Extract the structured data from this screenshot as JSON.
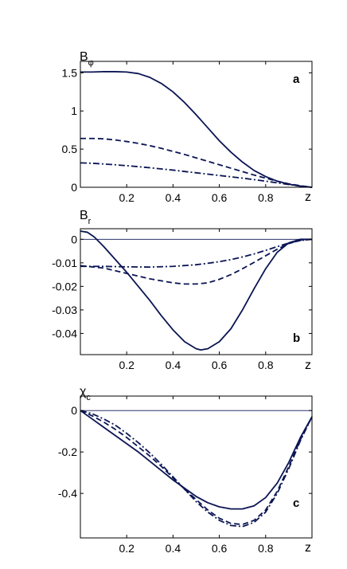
{
  "chart_data": [
    {
      "type": "line",
      "panel": "a",
      "ylabel_main": "B",
      "ylabel_sub": "φ",
      "xlabel": "z",
      "xlim": [
        0,
        1
      ],
      "ylim": [
        0,
        1.65
      ],
      "xticks": [
        "0.2",
        "0.4",
        "0.6",
        "0.8"
      ],
      "yticks": [
        {
          "v": 0,
          "label": "0"
        },
        {
          "v": 0.5,
          "label": "0.5"
        },
        {
          "v": 1,
          "label": "1"
        },
        {
          "v": 1.5,
          "label": "1.5"
        }
      ],
      "zero_line": false,
      "series": [
        {
          "style": "solid",
          "x": [
            0,
            0.05,
            0.1,
            0.15,
            0.2,
            0.25,
            0.3,
            0.35,
            0.4,
            0.45,
            0.5,
            0.55,
            0.6,
            0.65,
            0.7,
            0.75,
            0.8,
            0.85,
            0.9,
            0.95,
            1.0
          ],
          "y": [
            1.51,
            1.51,
            1.515,
            1.515,
            1.51,
            1.49,
            1.44,
            1.36,
            1.25,
            1.11,
            0.95,
            0.78,
            0.61,
            0.46,
            0.33,
            0.22,
            0.14,
            0.08,
            0.04,
            0.015,
            0
          ]
        },
        {
          "style": "dashed",
          "x": [
            0,
            0.05,
            0.1,
            0.15,
            0.2,
            0.25,
            0.3,
            0.35,
            0.4,
            0.45,
            0.5,
            0.55,
            0.6,
            0.65,
            0.7,
            0.75,
            0.8,
            0.85,
            0.9,
            0.95,
            1.0
          ],
          "y": [
            0.64,
            0.64,
            0.635,
            0.62,
            0.6,
            0.575,
            0.545,
            0.51,
            0.47,
            0.43,
            0.385,
            0.34,
            0.295,
            0.25,
            0.205,
            0.16,
            0.12,
            0.08,
            0.045,
            0.02,
            0
          ]
        },
        {
          "style": "dashdot",
          "x": [
            0,
            0.05,
            0.1,
            0.15,
            0.2,
            0.25,
            0.3,
            0.35,
            0.4,
            0.45,
            0.5,
            0.55,
            0.6,
            0.65,
            0.7,
            0.75,
            0.8,
            0.85,
            0.9,
            0.95,
            1.0
          ],
          "y": [
            0.32,
            0.315,
            0.305,
            0.295,
            0.283,
            0.27,
            0.256,
            0.24,
            0.225,
            0.207,
            0.19,
            0.172,
            0.155,
            0.137,
            0.12,
            0.1,
            0.08,
            0.058,
            0.036,
            0.016,
            0
          ]
        }
      ]
    },
    {
      "type": "line",
      "panel": "b",
      "ylabel_main": "B",
      "ylabel_sub": "r",
      "xlabel": "z",
      "xlim": [
        0,
        1
      ],
      "ylim": [
        -0.049,
        0.0045
      ],
      "xticks": [
        "0.2",
        "0.4",
        "0.6",
        "0.8"
      ],
      "yticks": [
        {
          "v": 0,
          "label": "0"
        },
        {
          "v": -0.01,
          "label": "-0.01"
        },
        {
          "v": -0.02,
          "label": "-0.02"
        },
        {
          "v": -0.03,
          "label": "-0.03"
        },
        {
          "v": -0.04,
          "label": "-0.04"
        }
      ],
      "zero_line": true,
      "series": [
        {
          "style": "solid",
          "x": [
            0,
            0.03,
            0.06,
            0.1,
            0.15,
            0.2,
            0.25,
            0.3,
            0.35,
            0.4,
            0.45,
            0.5,
            0.52,
            0.55,
            0.6,
            0.65,
            0.7,
            0.75,
            0.8,
            0.85,
            0.9,
            0.95,
            1.0
          ],
          "y": [
            0.0035,
            0.003,
            0.001,
            -0.003,
            -0.0085,
            -0.014,
            -0.02,
            -0.026,
            -0.0325,
            -0.0385,
            -0.0435,
            -0.0465,
            -0.047,
            -0.0465,
            -0.0435,
            -0.038,
            -0.03,
            -0.021,
            -0.0125,
            -0.0055,
            -0.0015,
            0,
            0
          ]
        },
        {
          "style": "dashed",
          "x": [
            0,
            0.1,
            0.2,
            0.3,
            0.4,
            0.45,
            0.5,
            0.55,
            0.6,
            0.65,
            0.7,
            0.75,
            0.8,
            0.85,
            0.9,
            0.95,
            1.0
          ],
          "y": [
            -0.0112,
            -0.0122,
            -0.0145,
            -0.0168,
            -0.0185,
            -0.019,
            -0.019,
            -0.0185,
            -0.017,
            -0.015,
            -0.0125,
            -0.0098,
            -0.007,
            -0.0042,
            -0.0018,
            -0.0004,
            0
          ]
        },
        {
          "style": "dashdot",
          "x": [
            0,
            0.1,
            0.2,
            0.3,
            0.4,
            0.5,
            0.55,
            0.6,
            0.65,
            0.7,
            0.75,
            0.8,
            0.85,
            0.9,
            0.95,
            1.0
          ],
          "y": [
            -0.0115,
            -0.0115,
            -0.0117,
            -0.0118,
            -0.0115,
            -0.0108,
            -0.0102,
            -0.0095,
            -0.0086,
            -0.0075,
            -0.0062,
            -0.0047,
            -0.0031,
            -0.0016,
            -0.0005,
            0
          ]
        }
      ]
    },
    {
      "type": "line",
      "panel": "c",
      "ylabel_main": "χ",
      "ylabel_sub": "c",
      "xlabel": "z",
      "xlim": [
        0,
        1
      ],
      "ylim": [
        -0.615,
        0.07
      ],
      "xticks": [
        "0.2",
        "0.4",
        "0.6",
        "0.8"
      ],
      "yticks": [
        {
          "v": 0,
          "label": "0"
        },
        {
          "v": -0.2,
          "label": "-0.2"
        },
        {
          "v": -0.4,
          "label": "-0.4"
        }
      ],
      "zero_line": true,
      "series": [
        {
          "style": "solid",
          "x": [
            0,
            0.05,
            0.1,
            0.15,
            0.2,
            0.25,
            0.3,
            0.35,
            0.4,
            0.45,
            0.5,
            0.55,
            0.6,
            0.65,
            0.7,
            0.75,
            0.8,
            0.85,
            0.9,
            0.95,
            1.0
          ],
          "y": [
            0,
            -0.04,
            -0.08,
            -0.12,
            -0.16,
            -0.2,
            -0.245,
            -0.29,
            -0.335,
            -0.375,
            -0.415,
            -0.445,
            -0.465,
            -0.475,
            -0.475,
            -0.46,
            -0.42,
            -0.35,
            -0.25,
            -0.13,
            -0.03
          ]
        },
        {
          "style": "dashed",
          "x": [
            0,
            0.05,
            0.1,
            0.15,
            0.2,
            0.25,
            0.3,
            0.35,
            0.4,
            0.45,
            0.5,
            0.55,
            0.6,
            0.65,
            0.7,
            0.75,
            0.8,
            0.85,
            0.9,
            0.95,
            1.0
          ],
          "y": [
            0,
            -0.025,
            -0.055,
            -0.09,
            -0.13,
            -0.175,
            -0.22,
            -0.27,
            -0.325,
            -0.38,
            -0.43,
            -0.48,
            -0.52,
            -0.545,
            -0.55,
            -0.53,
            -0.48,
            -0.39,
            -0.27,
            -0.14,
            -0.03
          ]
        },
        {
          "style": "dashdot",
          "x": [
            0,
            0.05,
            0.1,
            0.15,
            0.2,
            0.25,
            0.3,
            0.35,
            0.4,
            0.45,
            0.5,
            0.55,
            0.6,
            0.65,
            0.7,
            0.75,
            0.8,
            0.85,
            0.9,
            0.95,
            1.0
          ],
          "y": [
            0,
            -0.015,
            -0.04,
            -0.07,
            -0.11,
            -0.155,
            -0.205,
            -0.26,
            -0.32,
            -0.38,
            -0.44,
            -0.49,
            -0.53,
            -0.555,
            -0.56,
            -0.54,
            -0.49,
            -0.4,
            -0.28,
            -0.145,
            -0.03
          ]
        }
      ]
    }
  ],
  "colors": {
    "line": "#0b1553",
    "axis": "#000000"
  }
}
